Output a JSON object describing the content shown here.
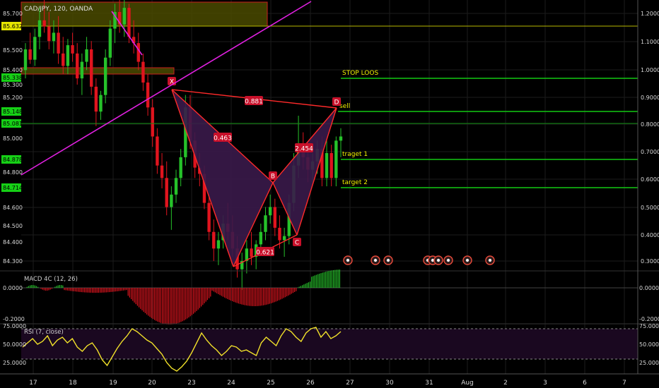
{
  "colors": {
    "background": "#000000",
    "grid": "#1c1c1c",
    "up_candle": "#26c22a",
    "down_candle": "#e0141e",
    "level_line": "#12c912",
    "level_text": "#f2f200",
    "trendline": "#e020e0",
    "pattern_line": "#ff2a2a",
    "pattern_fill": "#3a1a4a",
    "supply_zone": "#4a4a00",
    "zone_border": "#c81e1e",
    "rsi_line": "#f0e02a",
    "rsi_band": "#1a0820",
    "axis_text": "#d8d8d8",
    "price_tag_yellow": "#e6e600",
    "price_tag_green": "#16d016"
  },
  "chart_data": [
    {
      "type": "candlestick",
      "title": "CAD/JPY, 120, OANDA",
      "x_tick_labels": [
        "17",
        "18",
        "19",
        "20",
        "23",
        "24",
        "25",
        "26",
        "27",
        "30",
        "31",
        "Aug",
        "2",
        "3",
        "6",
        "7"
      ],
      "left_axis": {
        "ticks": [
          "85.700",
          "85.500",
          "85.400",
          "85.300",
          "85.200",
          "85.000",
          "84.800",
          "84.600",
          "84.500",
          "84.400",
          "84.300"
        ],
        "tagged_prices": [
          {
            "label": "85.632",
            "style": "yellow"
          },
          {
            "label": "85.338",
            "style": "green"
          },
          {
            "label": "85.148",
            "style": "green"
          },
          {
            "label": "85.081",
            "style": "green"
          },
          {
            "label": "84.878",
            "style": "green"
          },
          {
            "label": "84.714",
            "style": "green"
          }
        ]
      },
      "right_axis": {
        "ticks": [
          "1.2000",
          "1.1000",
          "1.0000",
          "0.9000",
          "0.8000",
          "0.7000",
          "0.6000",
          "0.5000",
          "0.4000",
          "0.3000"
        ]
      },
      "levels": [
        {
          "label": "STOP LOOS",
          "price": 85.3
        },
        {
          "label": "sell",
          "price": 85.1
        },
        {
          "label": "traget 1",
          "price": 84.88
        },
        {
          "label": "target 2",
          "price": 84.75
        }
      ],
      "harmonic_pattern": {
        "points": [
          {
            "label": "X",
            "price": 85.28
          },
          {
            "label": "B",
            "price": 84.8
          },
          {
            "label": "C",
            "price": 84.58
          },
          {
            "label": "D",
            "price": 85.18
          }
        ],
        "ratios": [
          "0.881",
          "0.463",
          "2.454",
          "0.621"
        ]
      },
      "candles_ohlc": [
        [
          85.42,
          85.55,
          85.38,
          85.52
        ],
        [
          85.52,
          85.6,
          85.45,
          85.47
        ],
        [
          85.47,
          85.62,
          85.44,
          85.58
        ],
        [
          85.58,
          85.72,
          85.52,
          85.66
        ],
        [
          85.66,
          85.76,
          85.6,
          85.63
        ],
        [
          85.63,
          85.7,
          85.52,
          85.56
        ],
        [
          85.56,
          85.66,
          85.5,
          85.6
        ],
        [
          85.6,
          85.68,
          85.45,
          85.5
        ],
        [
          85.5,
          85.58,
          85.4,
          85.44
        ],
        [
          85.44,
          85.57,
          85.4,
          85.54
        ],
        [
          85.54,
          85.6,
          85.46,
          85.5
        ],
        [
          85.5,
          85.55,
          85.35,
          85.38
        ],
        [
          85.38,
          85.5,
          85.3,
          85.46
        ],
        [
          85.46,
          85.58,
          85.42,
          85.52
        ],
        [
          85.52,
          85.56,
          85.3,
          85.34
        ],
        [
          85.34,
          85.38,
          85.15,
          85.22
        ],
        [
          85.22,
          85.32,
          85.18,
          85.3
        ],
        [
          85.3,
          85.52,
          85.26,
          85.48
        ],
        [
          85.48,
          85.66,
          85.44,
          85.62
        ],
        [
          85.62,
          85.74,
          85.55,
          85.7
        ],
        [
          85.7,
          85.78,
          85.6,
          85.64
        ],
        [
          85.64,
          85.76,
          85.58,
          85.72
        ],
        [
          85.72,
          85.74,
          85.55,
          85.58
        ],
        [
          85.58,
          85.66,
          85.5,
          85.55
        ],
        [
          85.55,
          85.6,
          85.42,
          85.46
        ],
        [
          85.46,
          85.5,
          85.32,
          85.36
        ],
        [
          85.36,
          85.4,
          85.2,
          85.24
        ],
        [
          85.24,
          85.28,
          85.05,
          85.1
        ],
        [
          85.1,
          85.14,
          84.92,
          84.96
        ],
        [
          84.96,
          85.02,
          84.85,
          84.9
        ],
        [
          84.9,
          84.98,
          84.72,
          84.76
        ],
        [
          84.76,
          84.86,
          84.65,
          84.82
        ],
        [
          84.82,
          84.94,
          84.78,
          84.9
        ],
        [
          84.9,
          85.04,
          84.86,
          85.0
        ],
        [
          85.0,
          85.3,
          84.96,
          85.24
        ],
        [
          85.24,
          85.3,
          85.04,
          85.08
        ],
        [
          85.08,
          85.12,
          84.9,
          84.95
        ],
        [
          84.95,
          85.02,
          84.86,
          84.92
        ],
        [
          84.92,
          84.96,
          84.75,
          84.78
        ],
        [
          84.78,
          84.82,
          84.6,
          84.64
        ],
        [
          84.64,
          84.7,
          84.5,
          84.56
        ],
        [
          84.56,
          84.64,
          84.48,
          84.6
        ],
        [
          84.6,
          84.72,
          84.56,
          84.68
        ],
        [
          84.68,
          84.78,
          84.6,
          84.64
        ],
        [
          84.64,
          84.72,
          84.52,
          84.56
        ],
        [
          84.56,
          84.62,
          84.42,
          84.46
        ],
        [
          84.46,
          84.54,
          84.36,
          84.5
        ],
        [
          84.5,
          84.6,
          84.44,
          84.56
        ],
        [
          84.56,
          84.64,
          84.48,
          84.52
        ],
        [
          84.52,
          84.6,
          84.46,
          84.58
        ],
        [
          84.58,
          84.68,
          84.54,
          84.64
        ],
        [
          84.64,
          84.76,
          84.6,
          84.72
        ],
        [
          84.72,
          84.82,
          84.68,
          84.76
        ],
        [
          84.76,
          84.8,
          84.62,
          84.66
        ],
        [
          84.66,
          84.72,
          84.56,
          84.6
        ],
        [
          84.6,
          84.66,
          84.52,
          84.62
        ],
        [
          84.62,
          84.82,
          84.58,
          84.78
        ],
        [
          84.78,
          85.02,
          84.74,
          84.96
        ],
        [
          84.96,
          85.2,
          84.9,
          85.06
        ],
        [
          85.06,
          85.12,
          84.94,
          85.0
        ],
        [
          85.0,
          85.06,
          84.88,
          84.94
        ],
        [
          84.94,
          85.02,
          84.88,
          84.98
        ],
        [
          84.98,
          85.08,
          84.92,
          85.04
        ],
        [
          85.04,
          85.1,
          84.86,
          84.9
        ],
        [
          84.9,
          85.08,
          84.86,
          85.02
        ],
        [
          85.02,
          85.06,
          84.86,
          84.9
        ],
        [
          84.9,
          85.1,
          84.86,
          85.08
        ],
        [
          85.08,
          85.14,
          85.0,
          85.1
        ]
      ]
    },
    {
      "type": "bar",
      "title": "MACD 4C (12, 26)",
      "y_tick_labels": [
        "0.0000",
        "-0.2000"
      ],
      "right_tick_labels": [
        "0.0000",
        "-0.2000"
      ]
    },
    {
      "type": "line",
      "title": "RSI (7, close)",
      "y_tick_labels": [
        "75.0000",
        "50.0000",
        "25.0000"
      ],
      "right_tick_labels": [
        "75.0000",
        "50.0000",
        "25.0000"
      ]
    }
  ]
}
